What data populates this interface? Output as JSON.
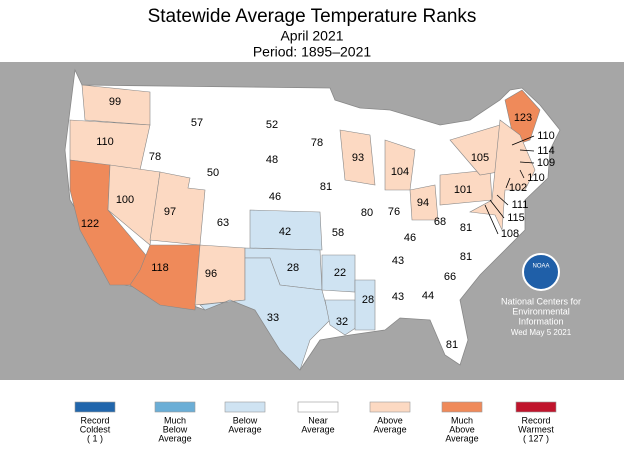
{
  "header": {
    "title": "Statewide Average Temperature Ranks",
    "subtitle": "April 2021",
    "period": "Period: 1895–2021"
  },
  "states": [
    {
      "rank": 99,
      "fill": "#fcd9c2"
    },
    {
      "rank": 110,
      "fill": "#fcd9c2"
    },
    {
      "rank": 122,
      "fill": "#ef8a5a"
    },
    {
      "rank": 100,
      "fill": "#fcd9c2"
    },
    {
      "rank": 78,
      "fill": "#ffffff"
    },
    {
      "rank": 57,
      "fill": "#ffffff"
    },
    {
      "rank": 50,
      "fill": "#ffffff"
    },
    {
      "rank": 97,
      "fill": "#fcd9c2"
    },
    {
      "rank": 118,
      "fill": "#ef8a5a"
    },
    {
      "rank": 63,
      "fill": "#ffffff"
    },
    {
      "rank": 96,
      "fill": "#fcd9c2"
    },
    {
      "rank": 52,
      "fill": "#ffffff"
    },
    {
      "rank": 48,
      "fill": "#ffffff"
    },
    {
      "rank": 46,
      "fill": "#ffffff"
    },
    {
      "rank": 42,
      "fill": "#cfe3f2"
    },
    {
      "rank": 28,
      "fill": "#cfe3f2"
    },
    {
      "rank": 33,
      "fill": "#cfe3f2"
    },
    {
      "rank": 78,
      "fill": "#ffffff"
    },
    {
      "rank": 81,
      "fill": "#ffffff"
    },
    {
      "rank": 58,
      "fill": "#ffffff"
    },
    {
      "rank": 22,
      "fill": "#cfe3f2"
    },
    {
      "rank": 32,
      "fill": "#cfe3f2"
    },
    {
      "rank": 93,
      "fill": "#fcd9c2"
    },
    {
      "rank": 80,
      "fill": "#ffffff"
    },
    {
      "rank": 28,
      "fill": "#cfe3f2"
    },
    {
      "rank": 104,
      "fill": "#fcd9c2"
    },
    {
      "rank": 76,
      "fill": "#ffffff"
    },
    {
      "rank": 46,
      "fill": "#ffffff"
    },
    {
      "rank": 43,
      "fill": "#ffffff"
    },
    {
      "rank": 43,
      "fill": "#ffffff"
    },
    {
      "rank": 94,
      "fill": "#fcd9c2"
    },
    {
      "rank": 44,
      "fill": "#ffffff"
    },
    {
      "rank": 81,
      "fill": "#ffffff"
    },
    {
      "rank": 66,
      "fill": "#ffffff"
    },
    {
      "rank": 81,
      "fill": "#ffffff"
    },
    {
      "rank": 81,
      "fill": "#ffffff"
    },
    {
      "rank": 68,
      "fill": "#ffffff"
    },
    {
      "rank": 101,
      "fill": "#fcd9c2"
    },
    {
      "rank": 105,
      "fill": "#fcd9c2"
    },
    {
      "rank": 123,
      "fill": "#ef8a5a"
    },
    {
      "rank": 110,
      "fill": "#fcd9c2"
    },
    {
      "rank": 114,
      "fill": "#fcd9c2"
    },
    {
      "rank": 109,
      "fill": "#fcd9c2"
    },
    {
      "rank": 110,
      "fill": "#fcd9c2"
    },
    {
      "rank": 102,
      "fill": "#fcd9c2"
    },
    {
      "rank": 111,
      "fill": "#fcd9c2"
    },
    {
      "rank": 115,
      "fill": "#fcd9c2"
    },
    {
      "rank": 108,
      "fill": "#fcd9c2"
    }
  ],
  "legend": [
    {
      "lines": [
        "Record",
        "Coldest",
        "( 1 )"
      ],
      "color": "#2166ac"
    },
    {
      "lines": [
        "Much",
        "Below",
        "Average"
      ],
      "color": "#6baed6"
    },
    {
      "lines": [
        "Below",
        "Average"
      ],
      "color": "#cfe3f2"
    },
    {
      "lines": [
        "Near",
        "Average"
      ],
      "color": "#ffffff"
    },
    {
      "lines": [
        "Above",
        "Average"
      ],
      "color": "#fcd9c2"
    },
    {
      "lines": [
        "Much",
        "Above",
        "Average"
      ],
      "color": "#ef8a5a"
    },
    {
      "lines": [
        "Record",
        "Warmest",
        "( 127 )"
      ],
      "color": "#c0142c"
    }
  ],
  "credit": {
    "logo": "NOAA",
    "lines": [
      "National Centers for",
      "Environmental",
      "Information",
      "Wed May  5 2021"
    ]
  }
}
